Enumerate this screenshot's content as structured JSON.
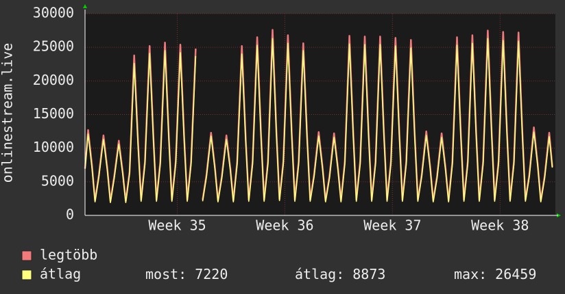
{
  "chart_data": {
    "type": "line",
    "ylabel": "onlinestream.live",
    "x": [
      0,
      0.2,
      0.45,
      0.65,
      0.9,
      1.2,
      1.45,
      1.65,
      1.9,
      2.2,
      2.45,
      2.65,
      2.9,
      3.2,
      3.45,
      3.65,
      3.9,
      4.2,
      4.45,
      4.65,
      4.9,
      5.2,
      5.45,
      5.65,
      5.9,
      6.2,
      6.45,
      6.65,
      6.9,
      7.2,
      7.45,
      7.65,
      7.9,
      8.2,
      8.45,
      8.65,
      8.9,
      9.2,
      9.45,
      9.65,
      9.9,
      10.2,
      10.45,
      10.65,
      10.9,
      11.2,
      11.45,
      11.65,
      11.9,
      12.2,
      12.45,
      12.65,
      12.9,
      13.2,
      13.45,
      13.65,
      13.9,
      14.2,
      14.45,
      14.65,
      14.9,
      15.2,
      15.45,
      15.65,
      15.9,
      16.2,
      16.45,
      16.65,
      16.9,
      17.2,
      17.45,
      17.65,
      17.9,
      18.2,
      18.45,
      18.65,
      18.9,
      19.2,
      19.45,
      19.65,
      19.9,
      20.2,
      20.45,
      20.65,
      20.9,
      21.2,
      21.45,
      21.65,
      21.9,
      22.2,
      22.45,
      22.65,
      22.9,
      23.2,
      23.45,
      23.65,
      23.9,
      24.2,
      24.45,
      24.65,
      24.9,
      25.2,
      25.45,
      25.65,
      25.9,
      26.2,
      26.45,
      26.65,
      26.9,
      27.2,
      27.45,
      27.65,
      27.9,
      28.2,
      28.45,
      28.65,
      28.9,
      29.2,
      29.45,
      29.65,
      29.9,
      30.2,
      30.4
    ],
    "series": [
      {
        "name": "legtöbb",
        "color": "#f27a7a",
        "values": [
          7000,
          12700,
          7500,
          2200,
          6000,
          11900,
          7000,
          2100,
          5800,
          11100,
          6500,
          2100,
          6500,
          23800,
          11000,
          2300,
          8000,
          25200,
          11500,
          2300,
          8000,
          25700,
          11800,
          2300,
          8000,
          25400,
          11600,
          2300,
          8000,
          24800,
          null,
          2300,
          6000,
          12300,
          7200,
          2200,
          5800,
          11900,
          7000,
          2200,
          8000,
          25200,
          11500,
          2300,
          8000,
          26500,
          12000,
          2300,
          8000,
          27600,
          12500,
          2400,
          8000,
          26800,
          12200,
          2300,
          8000,
          25600,
          11700,
          2300,
          6000,
          12400,
          7200,
          2200,
          5800,
          12200,
          7100,
          2200,
          8000,
          26700,
          12200,
          2300,
          8000,
          26600,
          12100,
          2300,
          8000,
          26600,
          12100,
          2300,
          8000,
          26400,
          12000,
          2300,
          8000,
          26100,
          11900,
          2300,
          6000,
          12500,
          7300,
          2200,
          5800,
          12200,
          7100,
          2200,
          8000,
          26500,
          12100,
          2300,
          8000,
          26800,
          12200,
          2300,
          8000,
          27500,
          12500,
          2300,
          8000,
          27300,
          12400,
          2300,
          8000,
          27200,
          12400,
          2300,
          6000,
          13100,
          7600,
          2200,
          5800,
          12300,
          7220
        ]
      },
      {
        "name": "átlag",
        "color": "#ffff80",
        "values": [
          6900,
          12100,
          7100,
          2000,
          5700,
          11300,
          6700,
          1900,
          5500,
          10600,
          6200,
          1900,
          6200,
          22600,
          10400,
          2100,
          7600,
          24100,
          11000,
          2100,
          7600,
          24500,
          11300,
          2100,
          7600,
          24200,
          11100,
          2100,
          7600,
          23700,
          null,
          2100,
          5700,
          11800,
          6900,
          2000,
          5500,
          11300,
          6700,
          2000,
          7600,
          24000,
          11000,
          2100,
          7600,
          25300,
          11500,
          2100,
          7600,
          26300,
          12000,
          2200,
          7600,
          25600,
          11700,
          2100,
          7600,
          24500,
          11200,
          2100,
          5700,
          11800,
          6900,
          2000,
          5500,
          11600,
          6800,
          2000,
          7600,
          25500,
          11700,
          2100,
          7600,
          25400,
          11600,
          2100,
          7600,
          25400,
          11600,
          2100,
          7600,
          25200,
          11500,
          2100,
          7600,
          24900,
          11400,
          2100,
          5700,
          11900,
          7000,
          2000,
          5500,
          11600,
          6800,
          2000,
          7600,
          25300,
          11600,
          2100,
          7600,
          25600,
          11700,
          2100,
          7600,
          26300,
          12000,
          2100,
          7600,
          26000,
          11900,
          2100,
          7600,
          25900,
          11900,
          2100,
          5700,
          12400,
          7300,
          2000,
          5500,
          11700,
          7100
        ]
      }
    ],
    "xlim": [
      0,
      30.6
    ],
    "xticks": [
      {
        "value": 6,
        "label": "Week 35"
      },
      {
        "value": 13,
        "label": "Week 36"
      },
      {
        "value": 20,
        "label": "Week 37"
      },
      {
        "value": 27,
        "label": "Week 38"
      }
    ],
    "ylim": [
      0,
      30000
    ],
    "yticks": [
      0,
      5000,
      10000,
      15000,
      20000,
      25000,
      30000
    ],
    "grid": true,
    "stats": [
      {
        "label": "most:",
        "value": 7220
      },
      {
        "label": "átlag:",
        "value": 8873
      },
      {
        "label": "max:",
        "value": 26459
      }
    ]
  }
}
